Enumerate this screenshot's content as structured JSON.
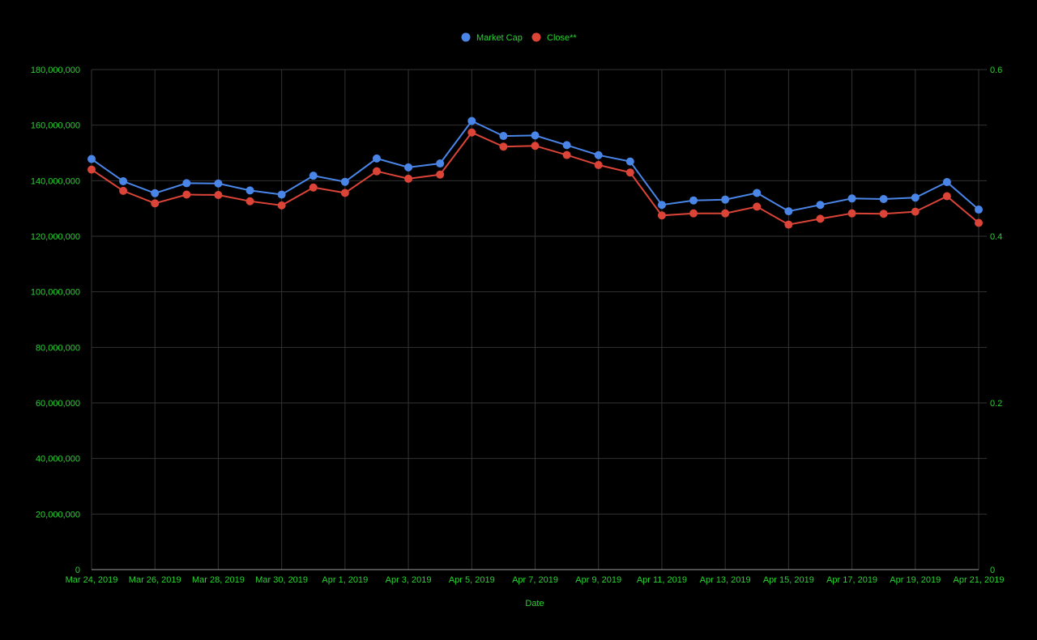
{
  "colors": {
    "background": "#000000",
    "text": "#27d330",
    "grid": "#333333",
    "baseline": "#9e9e9e",
    "market_cap": "#4a86e8",
    "close": "#db4437"
  },
  "chart_data": {
    "type": "line",
    "xlabel": "Date",
    "legend_position": "top",
    "grid": true,
    "x": [
      "Mar 24, 2019",
      "Mar 25, 2019",
      "Mar 26, 2019",
      "Mar 27, 2019",
      "Mar 28, 2019",
      "Mar 29, 2019",
      "Mar 30, 2019",
      "Mar 31, 2019",
      "Apr 1, 2019",
      "Apr 2, 2019",
      "Apr 3, 2019",
      "Apr 4, 2019",
      "Apr 5, 2019",
      "Apr 6, 2019",
      "Apr 7, 2019",
      "Apr 8, 2019",
      "Apr 9, 2019",
      "Apr 10, 2019",
      "Apr 11, 2019",
      "Apr 12, 2019",
      "Apr 13, 2019",
      "Apr 14, 2019",
      "Apr 15, 2019",
      "Apr 16, 2019",
      "Apr 17, 2019",
      "Apr 18, 2019",
      "Apr 19, 2019",
      "Apr 20, 2019",
      "Apr 21, 2019"
    ],
    "x_tick_labels": [
      "Mar 24, 2019",
      "Mar 26, 2019",
      "Mar 28, 2019",
      "Mar 30, 2019",
      "Apr 1, 2019",
      "Apr 3, 2019",
      "Apr 5, 2019",
      "Apr 7, 2019",
      "Apr 9, 2019",
      "Apr 11, 2019",
      "Apr 13, 2019",
      "Apr 15, 2019",
      "Apr 17, 2019",
      "Apr 19, 2019",
      "Apr 21, 2019"
    ],
    "y_left": {
      "range": [
        0,
        180000000
      ],
      "tick_labels": [
        "0",
        "20,000,000",
        "40,000,000",
        "60,000,000",
        "80,000,000",
        "100,000,000",
        "120,000,000",
        "140,000,000",
        "160,000,000",
        "180,000,000"
      ]
    },
    "y_right": {
      "range": [
        0,
        0.6
      ],
      "tick_labels": [
        "0",
        "0.2",
        "0.4",
        "0.6"
      ]
    },
    "series": [
      {
        "name": "Market Cap",
        "axis": "left",
        "values": [
          147800000,
          139800000,
          135500000,
          139100000,
          139000000,
          136500000,
          135000000,
          141800000,
          139600000,
          148000000,
          144800000,
          146200000,
          161500000,
          156100000,
          156300000,
          152800000,
          149200000,
          146900000,
          131300000,
          132900000,
          133200000,
          135600000,
          129000000,
          131300000,
          133600000,
          133400000,
          133900000,
          139500000,
          129600000
        ]
      },
      {
        "name": "Close**",
        "axis": "right",
        "values": [
          0.48,
          0.4545,
          0.4395,
          0.45,
          0.4495,
          0.442,
          0.437,
          0.4585,
          0.452,
          0.478,
          0.469,
          0.474,
          0.5245,
          0.5075,
          0.5085,
          0.4975,
          0.4855,
          0.4765,
          0.425,
          0.4275,
          0.4275,
          0.4355,
          0.414,
          0.421,
          0.4275,
          0.427,
          0.4295,
          0.448,
          0.416
        ]
      }
    ]
  }
}
